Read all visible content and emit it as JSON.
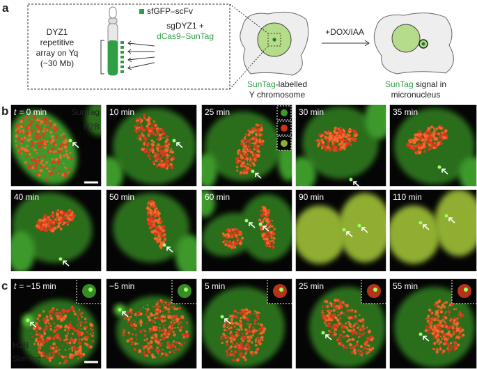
{
  "panel_a": {
    "label": "a",
    "legend": "sfGFP–scFv",
    "array_label": [
      "DYZ1",
      "repetitive",
      "array on Yq",
      "(~30 Mb)"
    ],
    "guide_label": [
      "sgDYZ1 +",
      "dCas9–SunTag"
    ],
    "cell1_caption": {
      "highlight": "SunTag",
      "rest": "-labelled",
      "line2": "Y chromosome"
    },
    "treatment": "+DOX/IAA",
    "cell2_caption": {
      "highlight": "SunTag",
      "rest": " signal in",
      "line2": "micronucleus"
    }
  },
  "panel_b": {
    "label": "b",
    "time_variable": "t",
    "channels": [
      "SunTag",
      "H2B"
    ],
    "frames": [
      "= 0 min",
      "10 min",
      "25 min",
      "30 min",
      "35 min",
      "40 min",
      "50 min",
      "60 min",
      "90 min",
      "110 min"
    ]
  },
  "panel_c": {
    "label": "c",
    "time_variable": "t",
    "channels": [
      "H2B",
      "SunTag"
    ],
    "frames": [
      "= −15 min",
      "−5 min",
      "5 min",
      "25 min",
      "55 min"
    ]
  }
}
